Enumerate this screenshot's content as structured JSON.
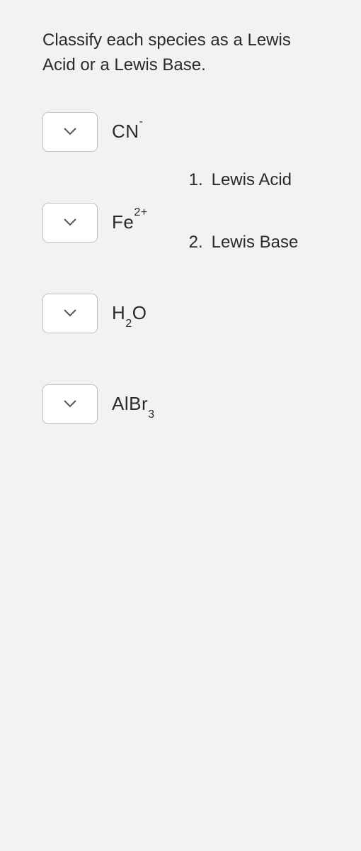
{
  "instruction": "Classify each species as a Lewis Acid or a Lewis Base.",
  "species": [
    {
      "html": "CN<sup>-</sup>"
    },
    {
      "html": "Fe<sup>2+</sup>"
    },
    {
      "html": "H<sub>2</sub>O"
    },
    {
      "html": "AlBr<sub>3</sub>"
    }
  ],
  "options": [
    {
      "num": "1.",
      "label": "Lewis Acid"
    },
    {
      "num": "2.",
      "label": "Lewis Base"
    }
  ]
}
